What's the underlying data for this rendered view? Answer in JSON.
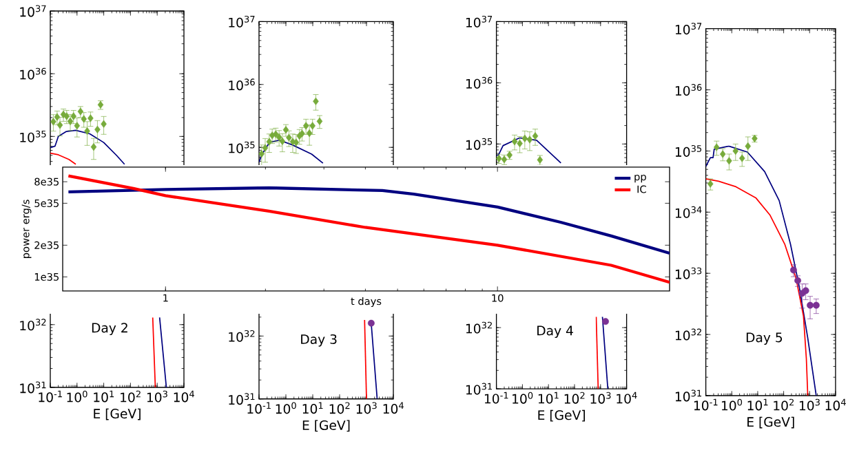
{
  "chart_data": [
    {
      "type": "line",
      "log": "xy",
      "xlabel": "E [GeV]",
      "annotations": [
        "Day 2"
      ],
      "xlim": [
        0.1,
        10000
      ],
      "ylim": [
        1e+31,
        1e+37
      ],
      "xticks": [
        {
          "value": 0.1,
          "label": "10$^{-1}$"
        },
        {
          "value": 1,
          "label": "10$^{0}$"
        },
        {
          "value": 10,
          "label": "10$^{1}$"
        },
        {
          "value": 100,
          "label": "10$^{2}$"
        },
        {
          "value": 1000,
          "label": "10$^{3}$"
        },
        {
          "value": 10000,
          "label": "10$^{4}$"
        }
      ],
      "yticks": [
        {
          "value": 1e+31,
          "label": "10$^{31}$"
        },
        {
          "value": 1e+32,
          "label": "10$^{32}$"
        },
        {
          "value": 1e+33,
          "label": null
        },
        {
          "value": 1e+34,
          "label": null
        },
        {
          "value": 1e+35,
          "label": "10$^{35}$"
        },
        {
          "value": 1e+36,
          "label": "10$^{36}$"
        },
        {
          "value": 1e+37,
          "label": "10$^{37}$"
        }
      ],
      "series": [
        {
          "color": "#000080",
          "x": [
            0.1,
            0.15,
            0.2,
            0.4,
            0.9,
            3,
            10,
            30,
            60,
            300,
            1230,
            2200
          ],
          "values": [
            6.6e+34,
            7e+34,
            1e+35,
            1.2e+35,
            1.25e+35,
            1.1e+35,
            8e+34,
            5e+34,
            3.6e+34,
            null,
            1.3e+32,
            1e+31
          ]
        },
        {
          "color": "#ff0000",
          "x": [
            0.1,
            0.2,
            0.5,
            0.9,
            100,
            680,
            850
          ],
          "values": [
            5.4e+34,
            5.1e+34,
            4.3e+34,
            3.6e+34,
            null,
            1.3e+32,
            1e+31
          ]
        },
        {
          "type": "scatter",
          "marker": "diamond",
          "color": "#77ab3b",
          "x": [
            0.13,
            0.18,
            0.23,
            0.31,
            0.41,
            0.56,
            0.74,
            1.0,
            1.35,
            1.8,
            2.4,
            3.2,
            4.2,
            5.8,
            7.6,
            10
          ],
          "values": [
            1.72e+35,
            2.04e+35,
            1.52e+35,
            2.24e+35,
            2.1e+35,
            1.74e+35,
            2.1e+35,
            1.48e+35,
            2.5e+35,
            1.9e+35,
            1.22e+35,
            1.95e+35,
            6.8e+34,
            1.29e+35,
            3.2e+35,
            1.58e+35
          ],
          "errors": [
            5e+34,
            5e+34,
            5e+34,
            5e+34,
            5e+34,
            5e+34,
            5e+34,
            5e+34,
            5e+34,
            5e+34,
            5e+34,
            5e+34,
            2.5e+34,
            5e+34,
            5e+34,
            5e+34
          ]
        }
      ]
    },
    {
      "type": "line",
      "log": "xy",
      "xlabel": "E [GeV]",
      "annotations": [
        "Day 3"
      ],
      "xlim": [
        0.1,
        10000
      ],
      "ylim": [
        1e+31,
        1e+37
      ],
      "xticks": [
        {
          "value": 0.1,
          "label": "10$^{-1}$"
        },
        {
          "value": 1,
          "label": "10$^{0}$"
        },
        {
          "value": 10,
          "label": "10$^{1}$"
        },
        {
          "value": 100,
          "label": "10$^{2}$"
        },
        {
          "value": 1000,
          "label": "10$^{3}$"
        },
        {
          "value": 10000,
          "label": "10$^{4}$"
        }
      ],
      "yticks": [
        {
          "value": 1e+31,
          "label": "10$^{31}$"
        },
        {
          "value": 1e+32,
          "label": "10$^{32}$"
        },
        {
          "value": 1e+33,
          "label": null
        },
        {
          "value": 1e+34,
          "label": null
        },
        {
          "value": 1e+35,
          "label": "10$^{35}$"
        },
        {
          "value": 1e+36,
          "label": "10$^{36}$"
        },
        {
          "value": 1e+37,
          "label": "10$^{37}$"
        }
      ],
      "series": [
        {
          "color": "#000080",
          "x": [
            0.1,
            0.13,
            0.245,
            0.57,
            1.7,
            9.1,
            24,
            300,
            1500,
            2500
          ],
          "values": [
            5.8e+34,
            7.8e+34,
            1.2e+35,
            1.3e+35,
            1.1e+35,
            7.8e+34,
            5.6e+34,
            null,
            1.6e+32,
            1e+31
          ]
        },
        {
          "color": "#ff0000",
          "x": [
            850,
            1000
          ],
          "values": [
            1.8e+32,
            1e+31
          ]
        },
        {
          "type": "scatter",
          "marker": "diamond",
          "color": "#77ab3b",
          "x": [
            0.125,
            0.17,
            0.24,
            0.31,
            0.42,
            0.56,
            0.74,
            1.0,
            1.3,
            1.8,
            2.4,
            3.2,
            4.0,
            5.6,
            7.5,
            9.8,
            13,
            18
          ],
          "values": [
            7.9e+34,
            9.8e+34,
            1.23e+35,
            1.55e+35,
            1.62e+35,
            1.45e+35,
            1.25e+35,
            1.9e+35,
            1.43e+35,
            1.23e+35,
            1.2e+35,
            1.52e+35,
            1.66e+35,
            2.2e+35,
            1.68e+35,
            2.2e+35,
            5.4e+35,
            2.6e+35
          ],
          "errors": [
            3e+34,
            4e+34,
            4e+34,
            4e+34,
            4e+34,
            4e+34,
            4e+34,
            4e+34,
            4e+34,
            4e+34,
            4e+34,
            4e+34,
            4e+34,
            6e+34,
            6e+34,
            6e+34,
            1.5e+35,
            6e+34
          ]
        },
        {
          "type": "scatter",
          "marker": "circle",
          "color": "#7b3294",
          "x": [
            1500
          ],
          "values": [
            1.6e+32
          ]
        }
      ]
    },
    {
      "type": "line",
      "log": "xy",
      "xlabel": "E [GeV]",
      "annotations": [
        "Day 4"
      ],
      "xlim": [
        0.1,
        10000
      ],
      "ylim": [
        1e+31,
        1e+37
      ],
      "xticks": [
        {
          "value": 0.1,
          "label": "10$^{-1}$"
        },
        {
          "value": 1,
          "label": "10$^{0}$"
        },
        {
          "value": 10,
          "label": "10$^{1}$"
        },
        {
          "value": 100,
          "label": "10$^{2}$"
        },
        {
          "value": 1000,
          "label": "10$^{3}$"
        },
        {
          "value": 10000,
          "label": "10$^{4}$"
        }
      ],
      "yticks": [
        {
          "value": 1e+31,
          "label": "10$^{31}$"
        },
        {
          "value": 1e+32,
          "label": "10$^{32}$"
        },
        {
          "value": 1e+33,
          "label": null
        },
        {
          "value": 1e+34,
          "label": null
        },
        {
          "value": 1e+35,
          "label": "10$^{35}$"
        },
        {
          "value": 1e+36,
          "label": "10$^{36}$"
        },
        {
          "value": 1e+37,
          "label": "10$^{37}$"
        }
      ],
      "series": [
        {
          "color": "#000080",
          "x": [
            0.1,
            0.12,
            0.18,
            0.79,
            3.5,
            30,
            300,
            1180,
            1900
          ],
          "values": [
            6.6e+34,
            6.6e+34,
            9.4e+34,
            1.26e+35,
            1.15e+35,
            4.9e+34,
            null,
            1.5e+32,
            1e+31
          ]
        },
        {
          "color": "#ff0000",
          "x": [
            680,
            810
          ],
          "values": [
            1.5e+32,
            1e+31
          ]
        },
        {
          "type": "scatter",
          "marker": "diamond",
          "color": "#77ab3b",
          "x": [
            0.125,
            0.2,
            0.32,
            0.5,
            0.79,
            1.23,
            1.9,
            3.1,
            4.7
          ],
          "values": [
            5.8e+34,
            5.6e+34,
            6.6e+34,
            1.1e+35,
            1.02e+35,
            1.23e+35,
            1.18e+35,
            1.35e+35,
            5.5e+34
          ],
          "errors": [
            1e+34,
            1e+34,
            1e+34,
            3e+34,
            3e+34,
            4e+34,
            4e+34,
            4e+34,
            1e+34
          ]
        },
        {
          "type": "scatter",
          "marker": "circle",
          "color": "#7b3294",
          "x": [
            1550
          ],
          "values": [
            1.26e+32
          ]
        }
      ]
    },
    {
      "type": "line",
      "log": "xy",
      "xlabel": "E [GeV]",
      "annotations": [
        "Day 5"
      ],
      "xlim": [
        0.1,
        10000
      ],
      "ylim": [
        1e+31,
        1e+37
      ],
      "xticks": [
        {
          "value": 0.1,
          "label": "10$^{-1}$"
        },
        {
          "value": 1,
          "label": "10$^{0}$"
        },
        {
          "value": 10,
          "label": "10$^{1}$"
        },
        {
          "value": 100,
          "label": "10$^{2}$"
        },
        {
          "value": 1000,
          "label": "10$^{3}$"
        },
        {
          "value": 10000,
          "label": "10$^{4}$"
        }
      ],
      "yticks": [
        {
          "value": 1e+31,
          "label": "10$^{31}$"
        },
        {
          "value": 1e+32,
          "label": "10$^{32}$"
        },
        {
          "value": 1e+33,
          "label": "10$^{33}$"
        },
        {
          "value": 1e+34,
          "label": "10$^{34}$"
        },
        {
          "value": 1e+35,
          "label": "10$^{35}$"
        },
        {
          "value": 1e+36,
          "label": "10$^{36}$"
        },
        {
          "value": 1e+37,
          "label": "10$^{37}$"
        }
      ],
      "series": [
        {
          "color": "#000080",
          "x": [
            0.1,
            0.15,
            0.19,
            0.21,
            0.77,
            4.0,
            18.5,
            67,
            183,
            400,
            850,
            1800
          ],
          "values": [
            5.6e+34,
            7.8e+34,
            7.8e+34,
            1.07e+35,
            1.2e+35,
            9.6e+34,
            4.6e+34,
            1.55e+34,
            3e+33,
            6e+32,
            8.7e+31,
            1e+31
          ]
        },
        {
          "color": "#ff0000",
          "x": [
            0.1,
            0.31,
            1.45,
            8.6,
            30,
            110,
            300,
            580,
            750,
            850
          ],
          "values": [
            3.5e+34,
            3.2e+34,
            2.6e+34,
            1.7e+34,
            8.9e+33,
            3e+33,
            8.3e+32,
            2e+32,
            4e+31,
            1e+31
          ]
        },
        {
          "type": "scatter",
          "marker": "diamond",
          "color": "#77ab3b",
          "x": [
            0.15,
            0.26,
            0.45,
            0.79,
            1.4,
            2.5,
            4.2,
            7.6
          ],
          "values": [
            2.9e+34,
            1.15e+35,
            8.9e+34,
            6.9e+34,
            1e+35,
            7.6e+34,
            1.2e+35,
            1.6e+35
          ],
          "errors": [
            6e+33,
            3e+34,
            2e+34,
            2e+34,
            3e+34,
            2e+34,
            5e+34,
            2e+34
          ]
        },
        {
          "type": "scatter",
          "marker": "circle",
          "color": "#7b3294",
          "x": [
            240,
            350,
            520,
            710,
            1050,
            1800
          ],
          "values": [
            1.13e+33,
            7.6e+32,
            4.7e+32,
            5.2e+32,
            3e+32,
            3e+32
          ],
          "errors": [
            2.5e+32,
            1.5e+32,
            2e+32,
            1.5e+32,
            1.2e+32,
            8e+31
          ]
        }
      ]
    },
    {
      "type": "line",
      "log": "xy",
      "xlabel": "t days",
      "ylabel": "power erg/s",
      "legend": "top right",
      "xlim": [
        0.49,
        33
      ],
      "ylim": [
        7.35e+34,
        1.1e+36
      ],
      "xticks": [
        1,
        10
      ],
      "yticks": [
        {
          "value": 1e+35,
          "label": "1e35"
        },
        {
          "value": 2e+35,
          "label": "2e35"
        },
        {
          "value": 5e+35,
          "label": "5e35"
        },
        {
          "value": 8e+35,
          "label": "8e35"
        }
      ],
      "series": [
        {
          "name": "pp",
          "color": "#000080",
          "x": [
            0.51,
            1,
            2.05,
            4.5,
            5.6,
            10,
            15.5,
            22,
            33
          ],
          "values": [
            6.4e+35,
            6.75e+35,
            7e+35,
            6.6e+35,
            6.1e+35,
            4.6e+35,
            3.3e+35,
            2.45e+35,
            1.68e+35
          ]
        },
        {
          "name": "IC",
          "color": "#ff0000",
          "x": [
            0.51,
            0.8,
            1,
            2.05,
            4.0,
            10,
            22,
            33
          ],
          "values": [
            9.1e+35,
            6.9e+35,
            5.9e+35,
            4.2e+35,
            2.95e+35,
            2e+35,
            1.29e+35,
            8.9e+34
          ]
        }
      ]
    }
  ]
}
